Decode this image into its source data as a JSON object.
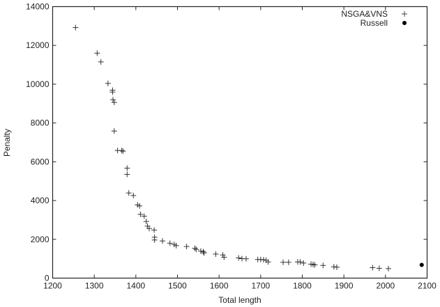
{
  "chart_data": {
    "type": "scatter",
    "title": "",
    "xlabel": "Total length",
    "ylabel": "Penalty",
    "xlim": [
      1200,
      2100
    ],
    "ylim": [
      0,
      14000
    ],
    "xticks": [
      1200,
      1300,
      1400,
      1500,
      1600,
      1700,
      1800,
      1900,
      2000,
      2100
    ],
    "yticks": [
      0,
      2000,
      4000,
      6000,
      8000,
      10000,
      12000,
      14000
    ],
    "grid": false,
    "legend_position": "top-right",
    "series": [
      {
        "name": "NSGA&VNS",
        "marker": "plus",
        "color": "#333333",
        "points": [
          [
            1255,
            12920
          ],
          [
            1307,
            11600
          ],
          [
            1316,
            11150
          ],
          [
            1333,
            10040
          ],
          [
            1344,
            9690
          ],
          [
            1344,
            9595
          ],
          [
            1345,
            9200
          ],
          [
            1348,
            9060
          ],
          [
            1348,
            7585
          ],
          [
            1356,
            6580
          ],
          [
            1366,
            6580
          ],
          [
            1369,
            6545
          ],
          [
            1379,
            5670
          ],
          [
            1379,
            5350
          ],
          [
            1383,
            4390
          ],
          [
            1394,
            4260
          ],
          [
            1404,
            3780
          ],
          [
            1409,
            3720
          ],
          [
            1411,
            3290
          ],
          [
            1420,
            3195
          ],
          [
            1425,
            2920
          ],
          [
            1428,
            2680
          ],
          [
            1432,
            2560
          ],
          [
            1444,
            2480
          ],
          [
            1445,
            2110
          ],
          [
            1445,
            1965
          ],
          [
            1464,
            1915
          ],
          [
            1482,
            1800
          ],
          [
            1492,
            1735
          ],
          [
            1497,
            1675
          ],
          [
            1522,
            1630
          ],
          [
            1542,
            1540
          ],
          [
            1545,
            1480
          ],
          [
            1556,
            1395
          ],
          [
            1562,
            1360
          ],
          [
            1564,
            1300
          ],
          [
            1592,
            1240
          ],
          [
            1609,
            1195
          ],
          [
            1612,
            1075
          ],
          [
            1647,
            1040
          ],
          [
            1655,
            1005
          ],
          [
            1665,
            995
          ],
          [
            1693,
            960
          ],
          [
            1700,
            960
          ],
          [
            1707,
            945
          ],
          [
            1713,
            920
          ],
          [
            1718,
            835
          ],
          [
            1754,
            815
          ],
          [
            1767,
            815
          ],
          [
            1789,
            835
          ],
          [
            1795,
            835
          ],
          [
            1803,
            775
          ],
          [
            1821,
            720
          ],
          [
            1826,
            705
          ],
          [
            1830,
            680
          ],
          [
            1850,
            655
          ],
          [
            1876,
            585
          ],
          [
            1883,
            565
          ],
          [
            1969,
            540
          ],
          [
            1985,
            505
          ],
          [
            2007,
            490
          ]
        ]
      },
      {
        "name": "Russell",
        "marker": "filled-circle",
        "color": "#000000",
        "points": [
          [
            2087,
            680
          ]
        ]
      }
    ]
  }
}
